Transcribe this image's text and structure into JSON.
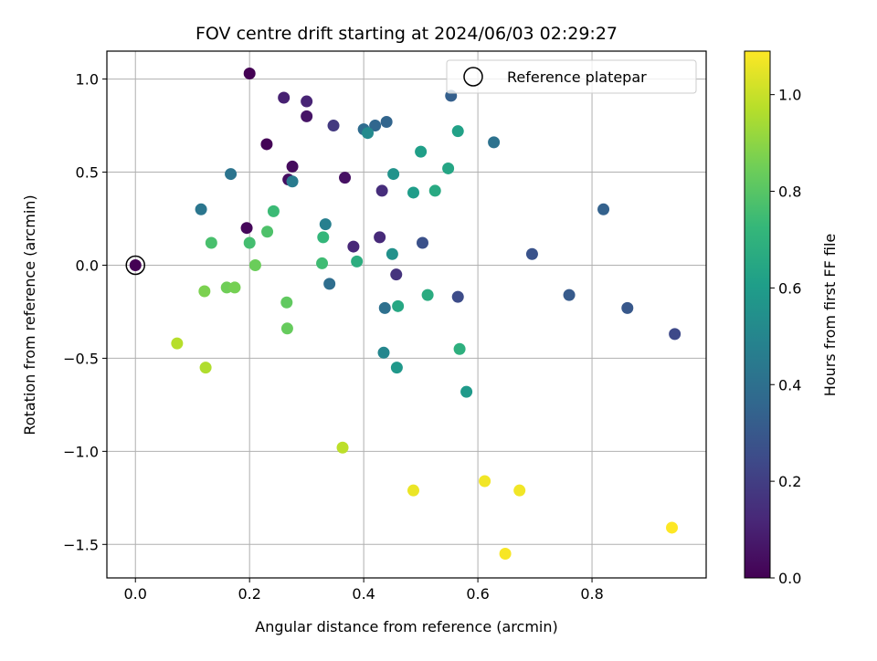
{
  "chart_data": {
    "type": "scatter",
    "title": "FOV centre drift starting at 2024/06/03 02:29:27",
    "xlabel": "Angular distance from reference (arcmin)",
    "ylabel": "Rotation from reference (arcmin)",
    "xlim": [
      -0.05,
      1.0
    ],
    "ylim": [
      -1.68,
      1.15
    ],
    "xticks": [
      0.0,
      0.2,
      0.4,
      0.6,
      0.8
    ],
    "xtick_labels": [
      "0.0",
      "0.2",
      "0.4",
      "0.6",
      "0.8"
    ],
    "yticks": [
      1.0,
      0.5,
      0.0,
      -0.5,
      -1.0,
      -1.5
    ],
    "ytick_labels": [
      "1.0",
      "0.5",
      "0.0",
      "−0.5",
      "−1.0",
      "−1.5"
    ],
    "grid": true,
    "legend": {
      "position": "top-right",
      "entries": [
        {
          "label": "Reference platepar",
          "marker": "open-circle"
        }
      ]
    },
    "reference_point": {
      "x": 0.0,
      "y": 0.0
    },
    "colorbar": {
      "label": "Hours from first FF file",
      "colormap": "viridis",
      "range": [
        0.0,
        1.09
      ],
      "ticks": [
        0.0,
        0.2,
        0.4,
        0.6,
        0.8,
        1.0
      ],
      "tick_labels": [
        "0.0",
        "0.2",
        "0.4",
        "0.6",
        "0.8",
        "1.0"
      ]
    },
    "points": [
      {
        "x": 0.0,
        "y": 0.0,
        "c": 0.0
      },
      {
        "x": 0.2,
        "y": 1.03,
        "c": 0.0
      },
      {
        "x": 0.23,
        "y": 0.65,
        "c": 0.01
      },
      {
        "x": 0.195,
        "y": 0.2,
        "c": 0.02
      },
      {
        "x": 0.275,
        "y": 0.53,
        "c": 0.03
      },
      {
        "x": 0.268,
        "y": 0.46,
        "c": 0.04
      },
      {
        "x": 0.367,
        "y": 0.47,
        "c": 0.05
      },
      {
        "x": 0.3,
        "y": 0.8,
        "c": 0.06
      },
      {
        "x": 0.26,
        "y": 0.9,
        "c": 0.1
      },
      {
        "x": 0.3,
        "y": 0.88,
        "c": 0.11
      },
      {
        "x": 0.382,
        "y": 0.1,
        "c": 0.12
      },
      {
        "x": 0.428,
        "y": 0.15,
        "c": 0.13
      },
      {
        "x": 0.432,
        "y": 0.4,
        "c": 0.14
      },
      {
        "x": 0.457,
        "y": -0.05,
        "c": 0.16
      },
      {
        "x": 0.347,
        "y": 0.75,
        "c": 0.18
      },
      {
        "x": 0.945,
        "y": -0.37,
        "c": 0.24
      },
      {
        "x": 0.565,
        "y": -0.17,
        "c": 0.25
      },
      {
        "x": 0.503,
        "y": 0.12,
        "c": 0.27
      },
      {
        "x": 0.695,
        "y": 0.06,
        "c": 0.28
      },
      {
        "x": 0.862,
        "y": -0.23,
        "c": 0.3
      },
      {
        "x": 0.76,
        "y": -0.16,
        "c": 0.31
      },
      {
        "x": 0.553,
        "y": 0.91,
        "c": 0.33
      },
      {
        "x": 0.82,
        "y": 0.3,
        "c": 0.34
      },
      {
        "x": 0.44,
        "y": 0.77,
        "c": 0.35
      },
      {
        "x": 0.42,
        "y": 0.75,
        "c": 0.36
      },
      {
        "x": 0.4,
        "y": 0.73,
        "c": 0.38
      },
      {
        "x": 0.34,
        "y": -0.1,
        "c": 0.39
      },
      {
        "x": 0.437,
        "y": -0.23,
        "c": 0.4
      },
      {
        "x": 0.628,
        "y": 0.66,
        "c": 0.41
      },
      {
        "x": 0.167,
        "y": 0.49,
        "c": 0.42
      },
      {
        "x": 0.115,
        "y": 0.3,
        "c": 0.43
      },
      {
        "x": 0.275,
        "y": 0.45,
        "c": 0.45
      },
      {
        "x": 0.333,
        "y": 0.22,
        "c": 0.47
      },
      {
        "x": 0.435,
        "y": -0.47,
        "c": 0.5
      },
      {
        "x": 0.407,
        "y": 0.71,
        "c": 0.52
      },
      {
        "x": 0.45,
        "y": 0.06,
        "c": 0.55
      },
      {
        "x": 0.452,
        "y": 0.49,
        "c": 0.56
      },
      {
        "x": 0.458,
        "y": -0.55,
        "c": 0.58
      },
      {
        "x": 0.58,
        "y": -0.68,
        "c": 0.59
      },
      {
        "x": 0.487,
        "y": 0.39,
        "c": 0.6
      },
      {
        "x": 0.5,
        "y": 0.61,
        "c": 0.61
      },
      {
        "x": 0.565,
        "y": 0.72,
        "c": 0.62
      },
      {
        "x": 0.548,
        "y": 0.52,
        "c": 0.64
      },
      {
        "x": 0.46,
        "y": -0.22,
        "c": 0.65
      },
      {
        "x": 0.525,
        "y": 0.4,
        "c": 0.66
      },
      {
        "x": 0.512,
        "y": -0.16,
        "c": 0.67
      },
      {
        "x": 0.388,
        "y": 0.02,
        "c": 0.68
      },
      {
        "x": 0.568,
        "y": -0.45,
        "c": 0.69
      },
      {
        "x": 0.329,
        "y": 0.15,
        "c": 0.72
      },
      {
        "x": 0.242,
        "y": 0.29,
        "c": 0.74
      },
      {
        "x": 0.327,
        "y": 0.01,
        "c": 0.75
      },
      {
        "x": 0.2,
        "y": 0.12,
        "c": 0.76
      },
      {
        "x": 0.133,
        "y": 0.12,
        "c": 0.77
      },
      {
        "x": 0.231,
        "y": 0.18,
        "c": 0.78
      },
      {
        "x": 0.265,
        "y": -0.2,
        "c": 0.82
      },
      {
        "x": 0.266,
        "y": -0.34,
        "c": 0.83
      },
      {
        "x": 0.21,
        "y": -0.0,
        "c": 0.84
      },
      {
        "x": 0.16,
        "y": -0.12,
        "c": 0.85
      },
      {
        "x": 0.174,
        "y": -0.12,
        "c": 0.86
      },
      {
        "x": 0.121,
        "y": -0.14,
        "c": 0.87
      },
      {
        "x": 0.123,
        "y": -0.55,
        "c": 0.96
      },
      {
        "x": 0.073,
        "y": -0.42,
        "c": 0.97
      },
      {
        "x": 0.363,
        "y": -0.98,
        "c": 0.98
      },
      {
        "x": 0.487,
        "y": -1.21,
        "c": 1.06
      },
      {
        "x": 0.612,
        "y": -1.16,
        "c": 1.07
      },
      {
        "x": 0.673,
        "y": -1.21,
        "c": 1.07
      },
      {
        "x": 0.648,
        "y": -1.55,
        "c": 1.08
      },
      {
        "x": 0.94,
        "y": -1.41,
        "c": 1.09
      }
    ]
  }
}
